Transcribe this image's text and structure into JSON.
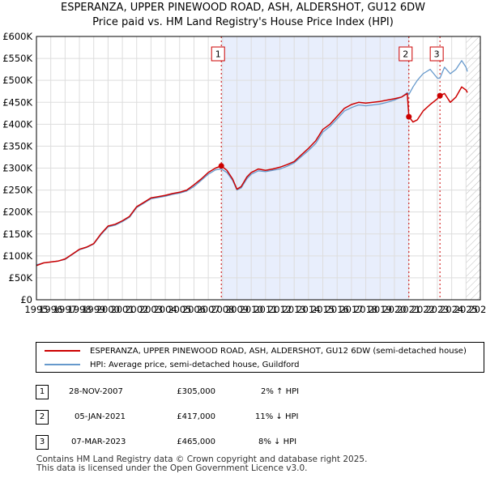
{
  "header": {
    "title_line1": "ESPERANZA, UPPER PINEWOOD ROAD, ASH, ALDERSHOT, GU12 6DW",
    "title_line2": "Price paid vs. HM Land Registry's House Price Index (HPI)"
  },
  "chart_data": {
    "type": "line",
    "title": "ESPERANZA, UPPER PINEWOOD ROAD, ASH, ALDERSHOT, GU12 6DW",
    "subtitle": "Price paid vs. HM Land Registry's House Price Index (HPI)",
    "xlabel": "",
    "ylabel": "",
    "xlim": [
      1995,
      2026
    ],
    "ylim": [
      0,
      600000
    ],
    "grid": true,
    "colors": {
      "property": "#cc0000",
      "hpi": "#6699cc",
      "shade": "#e8eefc",
      "marker": "#cc0000"
    },
    "x_ticks": [
      "1995",
      "1996",
      "1997",
      "1998",
      "1999",
      "2000",
      "2001",
      "2002",
      "2003",
      "2004",
      "2005",
      "2006",
      "2007",
      "2008",
      "2009",
      "2010",
      "2011",
      "2012",
      "2013",
      "2014",
      "2015",
      "2016",
      "2017",
      "2018",
      "2019",
      "2020",
      "2021",
      "2022",
      "2023",
      "2024",
      "2025",
      "2026"
    ],
    "y_ticks": [
      {
        "value": 0,
        "label": "£0"
      },
      {
        "value": 50000,
        "label": "£50K"
      },
      {
        "value": 100000,
        "label": "£100K"
      },
      {
        "value": 150000,
        "label": "£150K"
      },
      {
        "value": 200000,
        "label": "£200K"
      },
      {
        "value": 250000,
        "label": "£250K"
      },
      {
        "value": 300000,
        "label": "£300K"
      },
      {
        "value": 350000,
        "label": "£350K"
      },
      {
        "value": 400000,
        "label": "£400K"
      },
      {
        "value": 450000,
        "label": "£450K"
      },
      {
        "value": 500000,
        "label": "£500K"
      },
      {
        "value": 550000,
        "label": "£550K"
      },
      {
        "value": 600000,
        "label": "£600K"
      }
    ],
    "shaded_range": [
      2007.91,
      2021.01
    ],
    "forecast_start": 2025.0,
    "series": [
      {
        "name": "ESPERANZA, UPPER PINEWOOD ROAD, ASH, ALDERSHOT, GU12 6DW (semi-detached house)",
        "key": "property",
        "x": [
          1995.0,
          1995.5,
          1996.0,
          1996.5,
          1997.0,
          1997.5,
          1998.0,
          1998.5,
          1999.0,
          1999.5,
          2000.0,
          2000.5,
          2001.0,
          2001.5,
          2002.0,
          2002.5,
          2003.0,
          2003.5,
          2004.0,
          2004.5,
          2005.0,
          2005.5,
          2006.0,
          2006.5,
          2007.0,
          2007.5,
          2007.91,
          2008.3,
          2008.7,
          2009.0,
          2009.3,
          2009.7,
          2010.0,
          2010.5,
          2011.0,
          2011.5,
          2012.0,
          2012.5,
          2013.0,
          2013.5,
          2014.0,
          2014.5,
          2015.0,
          2015.5,
          2016.0,
          2016.5,
          2017.0,
          2017.5,
          2018.0,
          2018.5,
          2019.0,
          2019.5,
          2020.0,
          2020.5,
          2020.9,
          2021.01,
          2021.3,
          2021.6,
          2022.0,
          2022.5,
          2023.0,
          2023.18,
          2023.5,
          2023.9,
          2024.3,
          2024.7,
          2025.0,
          2025.1
        ],
        "values": [
          78000,
          84000,
          86000,
          88000,
          93000,
          104000,
          115000,
          120000,
          128000,
          150000,
          168000,
          172000,
          180000,
          190000,
          212000,
          222000,
          232000,
          235000,
          238000,
          242000,
          245000,
          250000,
          262000,
          275000,
          290000,
          300000,
          305000,
          295000,
          275000,
          252000,
          258000,
          280000,
          290000,
          298000,
          295000,
          298000,
          302000,
          308000,
          315000,
          330000,
          345000,
          362000,
          388000,
          400000,
          418000,
          436000,
          445000,
          450000,
          448000,
          450000,
          452000,
          455000,
          458000,
          462000,
          470000,
          417000,
          405000,
          410000,
          430000,
          445000,
          458000,
          465000,
          470000,
          450000,
          462000,
          485000,
          478000,
          472000
        ]
      },
      {
        "name": "HPI: Average price, semi-detached house, Guildford",
        "key": "hpi",
        "x": [
          1995.0,
          1995.5,
          1996.0,
          1996.5,
          1997.0,
          1997.5,
          1998.0,
          1998.5,
          1999.0,
          1999.5,
          2000.0,
          2000.5,
          2001.0,
          2001.5,
          2002.0,
          2002.5,
          2003.0,
          2003.5,
          2004.0,
          2004.5,
          2005.0,
          2005.5,
          2006.0,
          2006.5,
          2007.0,
          2007.5,
          2007.91,
          2008.3,
          2008.7,
          2009.0,
          2009.3,
          2009.7,
          2010.0,
          2010.5,
          2011.0,
          2011.5,
          2012.0,
          2012.5,
          2013.0,
          2013.5,
          2014.0,
          2014.5,
          2015.0,
          2015.5,
          2016.0,
          2016.5,
          2017.0,
          2017.5,
          2018.0,
          2018.5,
          2019.0,
          2019.5,
          2020.0,
          2020.5,
          2020.9,
          2021.01,
          2021.3,
          2021.6,
          2022.0,
          2022.5,
          2023.0,
          2023.18,
          2023.5,
          2023.9,
          2024.3,
          2024.7,
          2025.0,
          2025.1
        ],
        "values": [
          80000,
          84000,
          86000,
          88000,
          92000,
          103000,
          114000,
          119000,
          127000,
          148000,
          166000,
          170000,
          178000,
          188000,
          210000,
          220000,
          230000,
          233000,
          236000,
          240000,
          243000,
          248000,
          258000,
          272000,
          286000,
          296000,
          298000,
          290000,
          272000,
          250000,
          255000,
          276000,
          286000,
          294000,
          292000,
          295000,
          298000,
          304000,
          312000,
          326000,
          340000,
          356000,
          382000,
          395000,
          412000,
          430000,
          438000,
          444000,
          442000,
          444000,
          446000,
          450000,
          455000,
          462000,
          472000,
          468000,
          485000,
          500000,
          515000,
          525000,
          505000,
          505000,
          530000,
          515000,
          525000,
          545000,
          530000,
          520000
        ]
      }
    ],
    "sales": [
      {
        "id": "1",
        "x": 2007.91,
        "price": 305000
      },
      {
        "id": "2",
        "x": 2021.01,
        "price": 417000
      },
      {
        "id": "3",
        "x": 2023.18,
        "price": 465000
      }
    ]
  },
  "legend": {
    "property_label": "ESPERANZA, UPPER PINEWOOD ROAD, ASH, ALDERSHOT, GU12 6DW (semi-detached house)",
    "hpi_label": "HPI: Average price, semi-detached house, Guildford"
  },
  "transactions": [
    {
      "num": "1",
      "date": "28-NOV-2007",
      "price": "£305,000",
      "hpi": "2% ↑ HPI"
    },
    {
      "num": "2",
      "date": "05-JAN-2021",
      "price": "£417,000",
      "hpi": "11% ↓ HPI"
    },
    {
      "num": "3",
      "date": "07-MAR-2023",
      "price": "£465,000",
      "hpi": "8% ↓ HPI"
    }
  ],
  "footer": {
    "line1": "Contains HM Land Registry data © Crown copyright and database right 2025.",
    "line2": "This data is licensed under the Open Government Licence v3.0."
  }
}
